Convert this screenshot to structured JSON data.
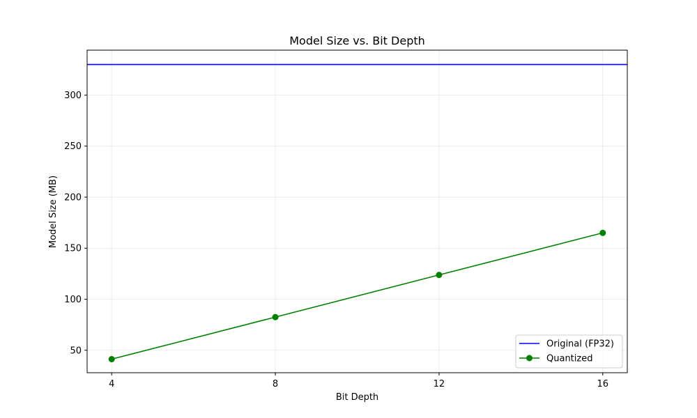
{
  "chart_data": {
    "type": "line",
    "title": "Model Size vs. Bit Depth",
    "xlabel": "Bit Depth",
    "ylabel": "Model Size (MB)",
    "x_ticks": [
      4,
      8,
      12,
      16
    ],
    "y_ticks": [
      50,
      100,
      150,
      200,
      250,
      300
    ],
    "xlim": [
      3.4,
      16.6
    ],
    "ylim": [
      28,
      344
    ],
    "grid": true,
    "legend_position": "lower-right",
    "series": [
      {
        "name": "Original (FP32)",
        "kind": "hline",
        "y": 330,
        "color": "#0000ff"
      },
      {
        "name": "Quantized",
        "kind": "line-marker",
        "x": [
          4,
          8,
          12,
          16
        ],
        "y": [
          41.3,
          82.5,
          123.8,
          165
        ],
        "color": "#008000"
      }
    ]
  }
}
